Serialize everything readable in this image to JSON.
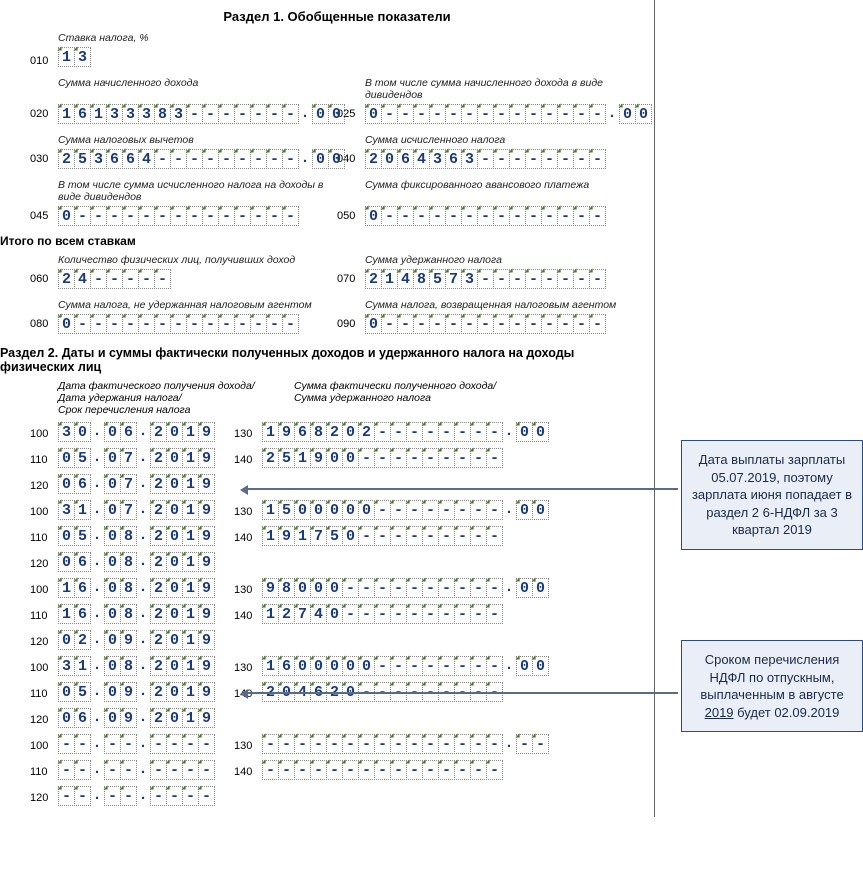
{
  "colors": {
    "cell_text": "#1a3a7a",
    "cell_border": "#888888",
    "cell_corner": "#4a7a2a",
    "callout_border": "#2a4a8a",
    "callout_bg": "#eaeef6"
  },
  "section1": {
    "title": "Раздел 1. Обобщенные показатели",
    "rate": {
      "label": "Ставка налога, %",
      "code": "010",
      "value": "13"
    },
    "rows": [
      {
        "code": "020",
        "label_l": "Сумма начисленного дохода",
        "value_l": "16133383-------",
        "dec_l": "00",
        "code_r": "025",
        "label_r": "В том числе сумма начисленного дохода в виде дивидендов",
        "value_r": "0--------------",
        "dec_r": "00"
      },
      {
        "code": "030",
        "label_l": "Сумма налоговых вычетов",
        "value_l": "253664---------",
        "dec_l": "00",
        "code_r": "040",
        "label_r": "Сумма исчисленного налога",
        "value_r": "2064363--------"
      },
      {
        "code": "045",
        "label_l": "В том числе сумма исчисленного налога на доходы в виде дивидендов",
        "value_l": "0--------------",
        "code_r": "050",
        "label_r": "Сумма фиксированного авансового платежа",
        "value_r": "0--------------"
      }
    ],
    "itogo": "Итого по всем ставкам",
    "rows2": [
      {
        "code": "060",
        "label_l": "Количество физических лиц, получивших доход",
        "value_l": "24-----",
        "code_r": "070",
        "label_r": "Сумма удержанного налога",
        "value_r": "2148573--------"
      },
      {
        "code": "080",
        "label_l": "Сумма налога, не удержанная налоговым агентом",
        "value_l": "0--------------",
        "code_r": "090",
        "label_r": "Сумма налога, возвращенная налоговым агентом",
        "value_r": "0--------------"
      }
    ]
  },
  "section2": {
    "title": "Раздел 2. Даты и суммы фактически полученных доходов и удержанного налога на доходы физических лиц",
    "sub_left": "Дата фактического получения дохода/\nДата удержания налога/\nСрок перечисления налога",
    "sub_right": "Сумма фактически полученного дохода/\nСумма удержанного налога",
    "blocks": [
      {
        "l100": {
          "d": "30",
          "m": "06",
          "y": "2019"
        },
        "l130": "1968202--------",
        "d130": "00",
        "l110": {
          "d": "05",
          "m": "07",
          "y": "2019"
        },
        "l140": "251900---------",
        "l120": {
          "d": "06",
          "m": "07",
          "y": "2019"
        }
      },
      {
        "l100": {
          "d": "31",
          "m": "07",
          "y": "2019"
        },
        "l130": "1500000--------",
        "d130": "00",
        "l110": {
          "d": "05",
          "m": "08",
          "y": "2019"
        },
        "l140": "191750---------",
        "l120": {
          "d": "06",
          "m": "08",
          "y": "2019"
        }
      },
      {
        "l100": {
          "d": "16",
          "m": "08",
          "y": "2019"
        },
        "l130": "98000----------",
        "d130": "00",
        "l110": {
          "d": "16",
          "m": "08",
          "y": "2019"
        },
        "l140": "12740----------",
        "l120": {
          "d": "02",
          "m": "09",
          "y": "2019"
        }
      },
      {
        "l100": {
          "d": "31",
          "m": "08",
          "y": "2019"
        },
        "l130": "1600000--------",
        "d130": "00",
        "l110": {
          "d": "05",
          "m": "09",
          "y": "2019"
        },
        "l140": "204620---------",
        "l120": {
          "d": "06",
          "m": "09",
          "y": "2019"
        }
      },
      {
        "l100": {
          "d": "--",
          "m": "--",
          "y": "----"
        },
        "l130": "---------------",
        "d130": "--",
        "l110": {
          "d": "--",
          "m": "--",
          "y": "----"
        },
        "l140": "---------------",
        "l120": {
          "d": "--",
          "m": "--",
          "y": "----"
        }
      }
    ]
  },
  "callouts": [
    "Дата выплаты зарплаты 05.07.2019, поэтому зарплата июня попадает в раздел 2 6-НДФЛ за 3 квартал 2019",
    "Сроком перечисления НДФЛ по отпускным, выплаченным в августе <u>2019</u> будет 02.09.2019"
  ]
}
